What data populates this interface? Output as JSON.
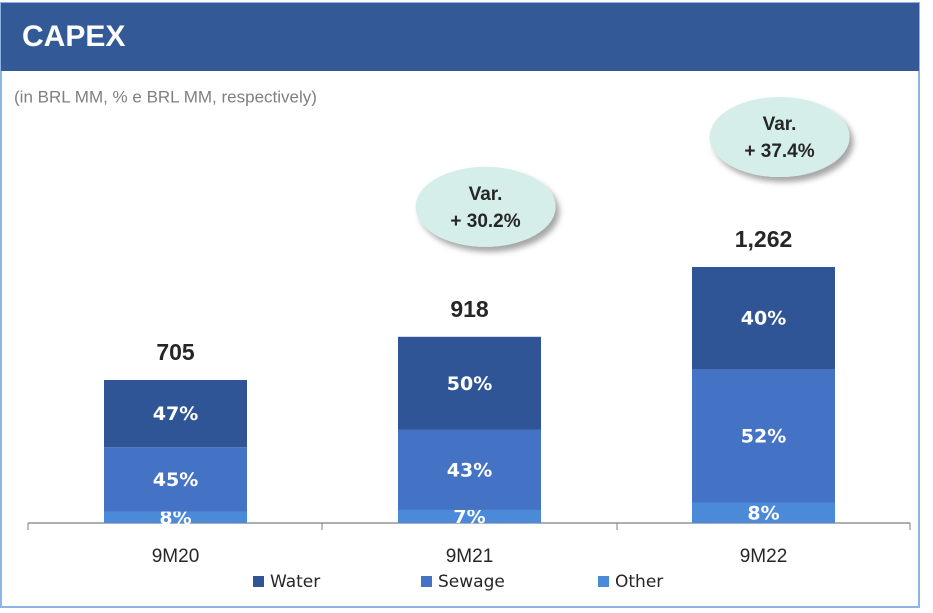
{
  "chart_data": {
    "type": "bar",
    "title": "CAPEX",
    "subtitle": "(in BRL MM, % e BRL MM, respectively)",
    "categories": [
      "9M20",
      "9M21",
      "9M22"
    ],
    "totals": {
      "values": [
        705,
        918,
        1262
      ],
      "value_labels": [
        "705",
        "918",
        "1,262"
      ]
    },
    "series": [
      {
        "name": "Other",
        "color": "#4a8ad8",
        "values": [
          8,
          7,
          8
        ],
        "value_labels": [
          "8%",
          "7%",
          "8%"
        ]
      },
      {
        "name": "Sewage",
        "color": "#4472c4",
        "values": [
          45,
          43,
          52
        ],
        "value_labels": [
          "45%",
          "43%",
          "52%"
        ]
      },
      {
        "name": "Water",
        "color": "#2f5597",
        "values": [
          47,
          50,
          40
        ],
        "value_labels": [
          "47%",
          "50%",
          "40%"
        ]
      }
    ],
    "legend_order": [
      "Water",
      "Sewage",
      "Other"
    ],
    "annotations": [
      {
        "category": 1,
        "lines": [
          "Var.",
          "+ 30.2%"
        ]
      },
      {
        "category": 2,
        "lines": [
          "Var.",
          "+ 37.4%"
        ]
      }
    ]
  }
}
